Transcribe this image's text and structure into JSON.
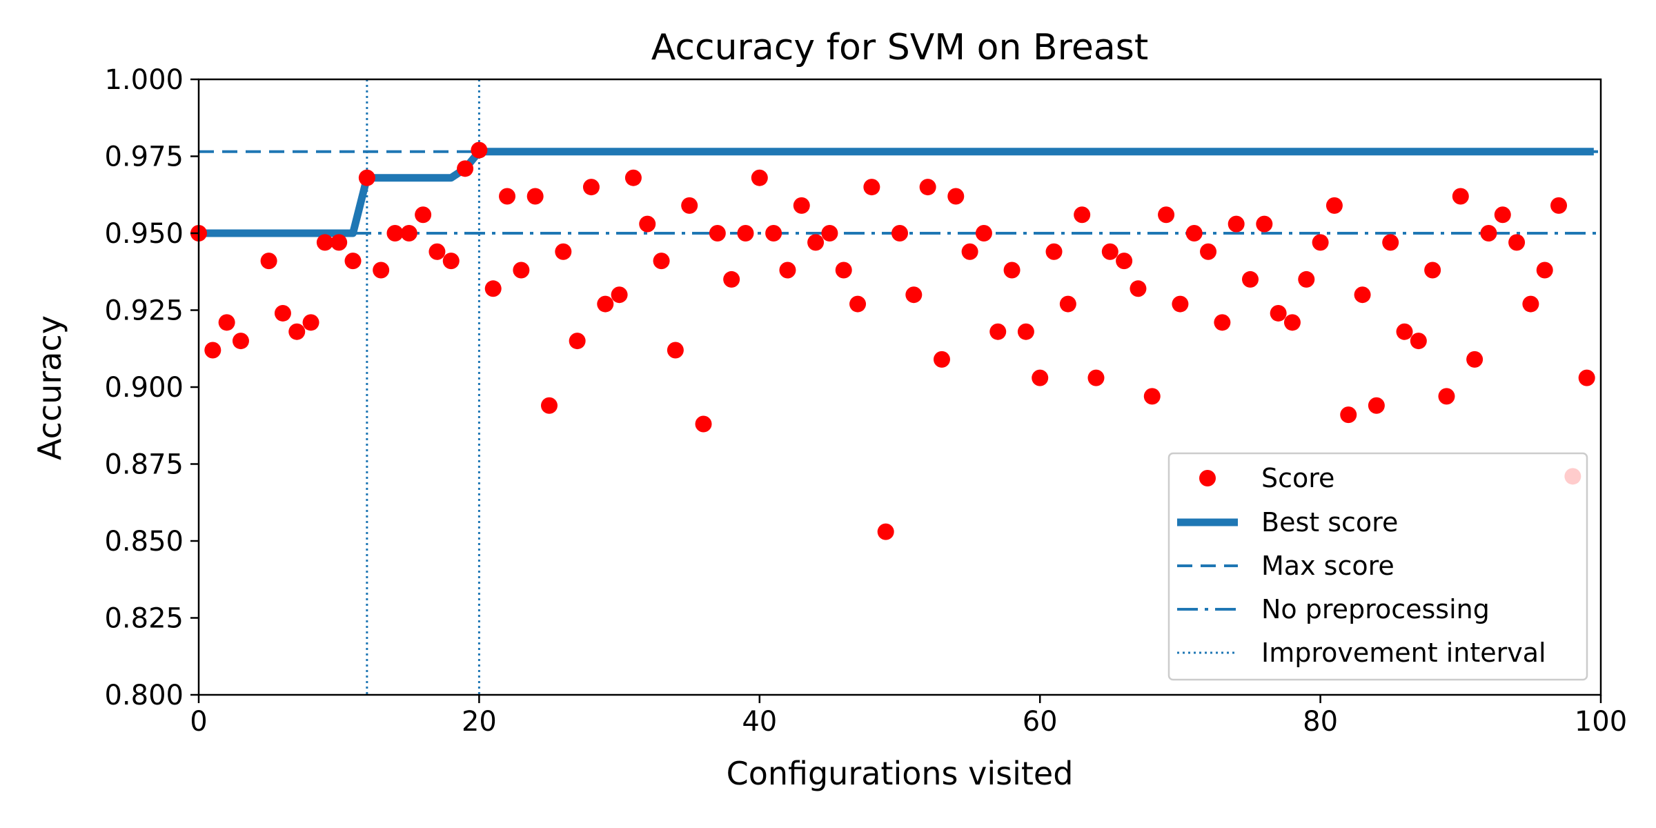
{
  "chart_data": {
    "type": "scatter",
    "title": "Accuracy for SVM on Breast",
    "xlabel": "Configurations visited",
    "ylabel": "Accuracy",
    "xlim": [
      0,
      100
    ],
    "ylim": [
      0.8,
      1.0
    ],
    "x_ticks": [
      "0",
      "20",
      "40",
      "60",
      "80",
      "100"
    ],
    "y_ticks": [
      "0.800",
      "0.825",
      "0.850",
      "0.875",
      "0.900",
      "0.925",
      "0.950",
      "0.975",
      "1.000"
    ],
    "grid": false,
    "legend_position": "lower-right",
    "colors": {
      "score": "#ff0000",
      "lines": "#1f77b4"
    },
    "series": [
      {
        "name": "Score",
        "kind": "markers",
        "x": [
          0,
          1,
          2,
          3,
          5,
          6,
          7,
          8,
          9,
          10,
          11,
          12,
          13,
          14,
          15,
          16,
          17,
          18,
          19,
          20,
          21,
          22,
          23,
          24,
          25,
          26,
          27,
          28,
          29,
          30,
          31,
          32,
          33,
          34,
          35,
          36,
          37,
          38,
          39,
          40,
          41,
          42,
          43,
          44,
          45,
          46,
          47,
          48,
          49,
          50,
          51,
          52,
          53,
          54,
          55,
          56,
          57,
          58,
          59,
          60,
          61,
          62,
          63,
          64,
          65,
          66,
          67,
          68,
          69,
          70,
          71,
          72,
          73,
          74,
          75,
          76,
          77,
          78,
          79,
          80,
          81,
          82,
          83,
          84,
          85,
          86,
          87,
          88,
          89,
          90,
          91,
          92,
          93,
          94,
          95,
          96,
          97,
          98,
          99
        ],
        "y": [
          0.95,
          0.912,
          0.921,
          0.915,
          0.941,
          0.924,
          0.918,
          0.921,
          0.947,
          0.947,
          0.941,
          0.968,
          0.938,
          0.95,
          0.95,
          0.956,
          0.944,
          0.941,
          0.971,
          0.977,
          0.932,
          0.962,
          0.938,
          0.962,
          0.894,
          0.944,
          0.915,
          0.965,
          0.927,
          0.93,
          0.968,
          0.953,
          0.941,
          0.912,
          0.959,
          0.888,
          0.95,
          0.935,
          0.95,
          0.968,
          0.95,
          0.938,
          0.959,
          0.947,
          0.95,
          0.938,
          0.927,
          0.965,
          0.853,
          0.95,
          0.93,
          0.965,
          0.909,
          0.962,
          0.944,
          0.95,
          0.918,
          0.938,
          0.918,
          0.903,
          0.944,
          0.927,
          0.956,
          0.903,
          0.944,
          0.941,
          0.932,
          0.897,
          0.956,
          0.927,
          0.95,
          0.944,
          0.921,
          0.953,
          0.935,
          0.953,
          0.924,
          0.921,
          0.935,
          0.947,
          0.959,
          0.891,
          0.93,
          0.894,
          0.947,
          0.918,
          0.915,
          0.938,
          0.897,
          0.962,
          0.909,
          0.95,
          0.956,
          0.947,
          0.927,
          0.938,
          0.959,
          0.871,
          0.903
        ]
      },
      {
        "name": "Best score",
        "kind": "line",
        "x": [
          0,
          11,
          12,
          18,
          19,
          20,
          100
        ],
        "y": [
          0.95,
          0.95,
          0.968,
          0.968,
          0.971,
          0.9765,
          0.9765
        ]
      },
      {
        "name": "Max score",
        "kind": "hline",
        "y": 0.9765
      },
      {
        "name": "No preprocessing",
        "kind": "hline",
        "y": 0.95
      },
      {
        "name": "Improvement interval",
        "kind": "vlines",
        "x": [
          12,
          20
        ]
      }
    ]
  }
}
